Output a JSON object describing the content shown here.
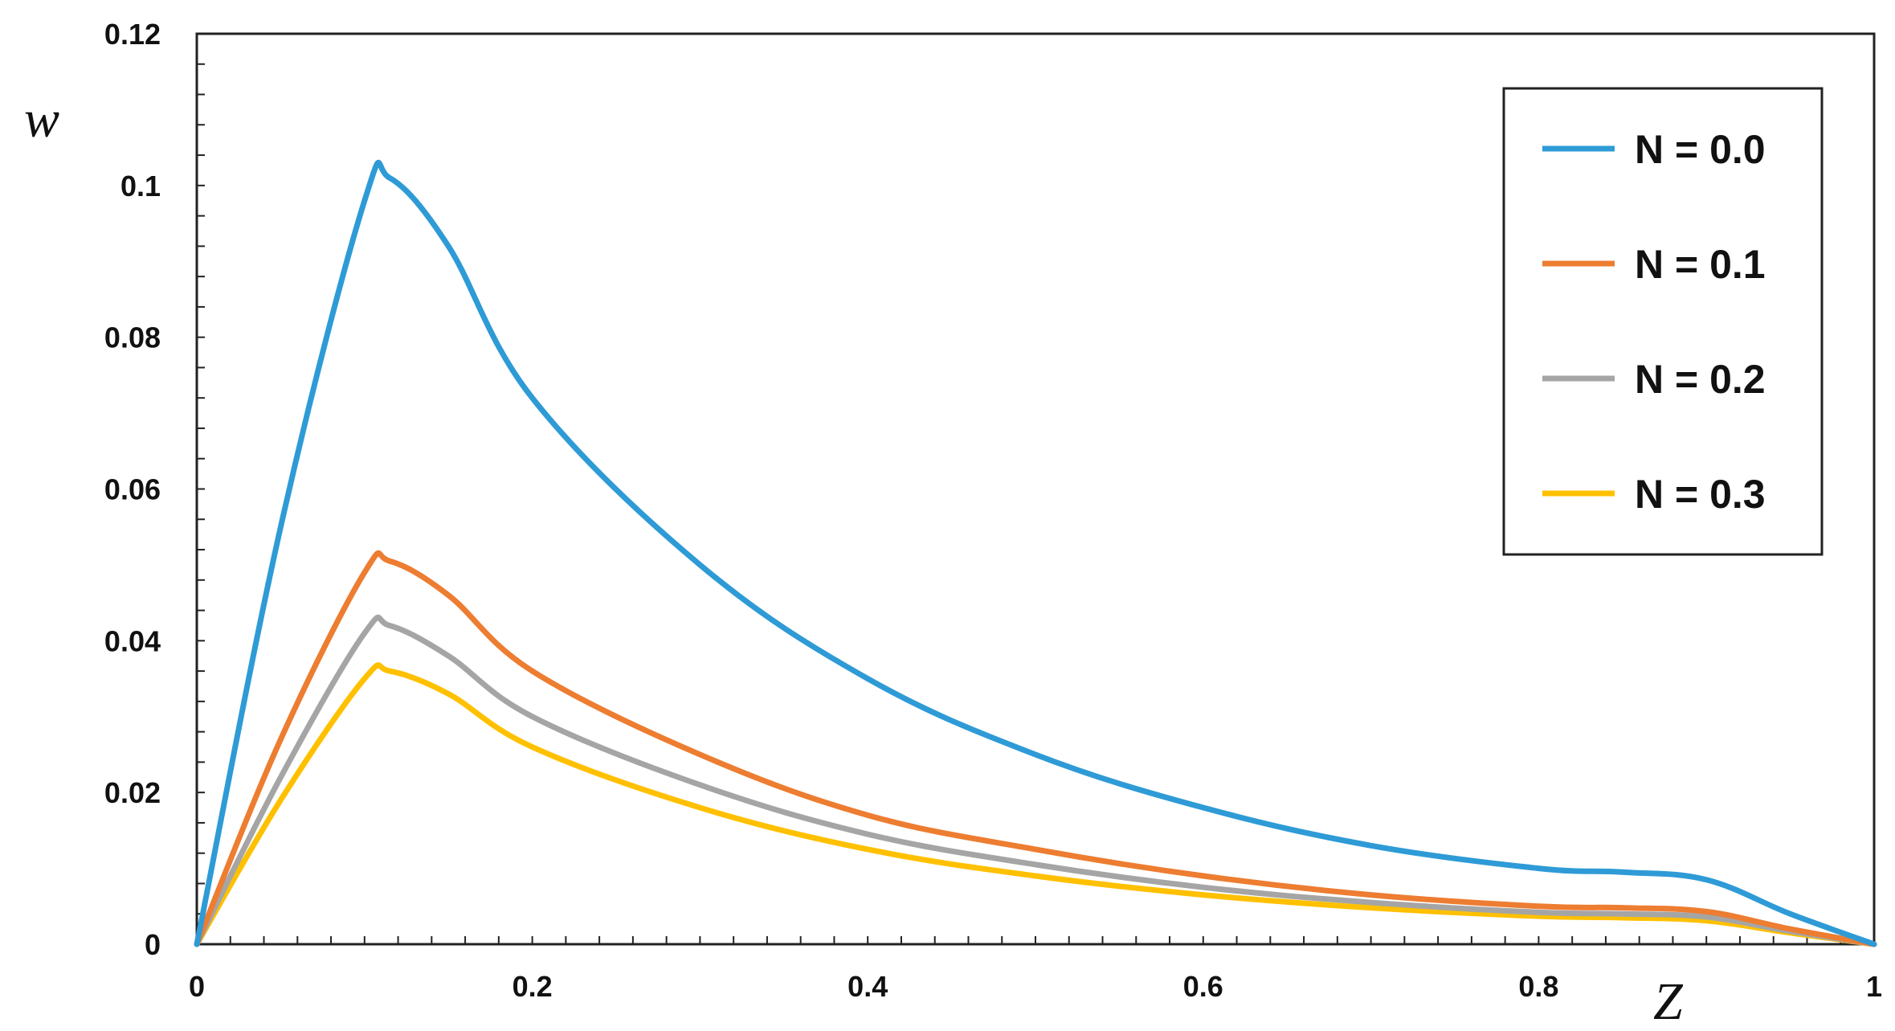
{
  "chart_data": {
    "type": "line",
    "title": "",
    "xlabel": "Z",
    "ylabel": "w",
    "xlim": [
      0,
      1
    ],
    "ylim": [
      0,
      0.12
    ],
    "xticks": [
      0,
      0.2,
      0.4,
      0.6,
      0.8,
      1
    ],
    "xtick_labels": [
      "0",
      "0.2",
      "0.4",
      "0.6",
      "0.8",
      "1"
    ],
    "yticks": [
      0,
      0.02,
      0.04,
      0.06,
      0.08,
      0.1,
      0.12
    ],
    "ytick_labels": [
      "0",
      "0.02",
      "0.04",
      "0.06",
      "0.08",
      "0.1",
      "0.12"
    ],
    "grid": false,
    "legend_position": "top-right",
    "x": [
      0,
      0.05,
      0.1,
      0.115,
      0.15,
      0.2,
      0.3,
      0.4,
      0.5,
      0.6,
      0.7,
      0.8,
      0.85,
      0.9,
      0.95,
      1.0
    ],
    "series": [
      {
        "name": "N = 0.0",
        "color": "#2e9bd6",
        "values": [
          0,
          0.055,
          0.098,
          0.101,
          0.092,
          0.072,
          0.05,
          0.035,
          0.025,
          0.018,
          0.013,
          0.01,
          0.0095,
          0.0085,
          0.004,
          0
        ]
      },
      {
        "name": "N = 0.1",
        "color": "#ed7d31",
        "values": [
          0,
          0.027,
          0.049,
          0.0505,
          0.046,
          0.036,
          0.025,
          0.017,
          0.0125,
          0.009,
          0.0065,
          0.005,
          0.0048,
          0.0043,
          0.002,
          0
        ]
      },
      {
        "name": "N = 0.2",
        "color": "#a5a5a5",
        "values": [
          0,
          0.022,
          0.041,
          0.042,
          0.038,
          0.03,
          0.021,
          0.0145,
          0.0105,
          0.0075,
          0.0055,
          0.0042,
          0.004,
          0.0036,
          0.0017,
          0
        ]
      },
      {
        "name": "N = 0.3",
        "color": "#ffc000",
        "values": [
          0,
          0.019,
          0.035,
          0.036,
          0.033,
          0.026,
          0.018,
          0.0125,
          0.009,
          0.0065,
          0.0048,
          0.0037,
          0.0035,
          0.0031,
          0.0015,
          0
        ]
      }
    ]
  }
}
